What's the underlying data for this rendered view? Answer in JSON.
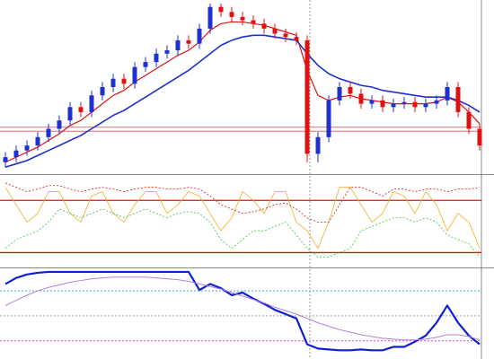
{
  "chart_data": [
    {
      "type": "candlestick",
      "up_color": "#1f2fd0",
      "down_color": "#e01010",
      "ylim": [
        0,
        100
      ],
      "open": [
        5,
        8,
        12,
        15,
        20,
        25,
        30,
        38,
        35,
        45,
        50,
        55,
        52,
        62,
        65,
        70,
        72,
        78,
        76,
        85,
        98,
        95,
        92,
        90,
        88,
        85,
        82,
        80,
        78,
        10,
        20,
        42,
        50,
        46,
        40,
        42,
        38,
        40,
        41,
        38,
        40,
        42,
        50,
        35,
        25
      ],
      "high": [
        11,
        15,
        18,
        23,
        28,
        33,
        41,
        41,
        48,
        53,
        58,
        58,
        65,
        68,
        73,
        75,
        81,
        81,
        88,
        100,
        100,
        98,
        95,
        93,
        91,
        88,
        85,
        83,
        81,
        23,
        45,
        53,
        53,
        49,
        45,
        45,
        43,
        44,
        44,
        43,
        45,
        53,
        53,
        38,
        28
      ],
      "low": [
        2,
        5,
        9,
        12,
        17,
        22,
        27,
        32,
        32,
        42,
        47,
        49,
        49,
        59,
        62,
        67,
        69,
        73,
        73,
        82,
        92,
        89,
        87,
        85,
        82,
        79,
        77,
        75,
        5,
        5,
        17,
        39,
        43,
        37,
        37,
        35,
        35,
        37,
        35,
        35,
        37,
        39,
        32,
        22,
        12
      ],
      "close": [
        8,
        12,
        15,
        20,
        25,
        30,
        38,
        35,
        45,
        50,
        55,
        52,
        62,
        65,
        70,
        72,
        78,
        76,
        85,
        98,
        95,
        92,
        90,
        88,
        85,
        82,
        80,
        78,
        10,
        20,
        42,
        50,
        46,
        40,
        42,
        38,
        40,
        41,
        38,
        40,
        42,
        50,
        35,
        25,
        15
      ],
      "series": [
        {
          "color": "#e01010",
          "width": 1.2,
          "values": [
            5,
            8,
            11,
            14,
            18,
            22,
            27,
            30,
            35,
            40,
            45,
            48,
            53,
            57,
            61,
            65,
            69,
            72,
            77,
            84,
            88,
            89,
            89,
            88,
            87,
            85,
            83,
            81,
            60,
            45,
            42,
            44,
            45,
            43,
            42,
            41,
            40,
            40,
            40,
            40,
            41,
            44,
            41,
            35,
            28
          ]
        },
        {
          "color": "#1f2fd0",
          "width": 1.6,
          "values": [
            2,
            4,
            6,
            9,
            12,
            15,
            18,
            21,
            25,
            29,
            33,
            36,
            40,
            44,
            48,
            52,
            56,
            60,
            65,
            70,
            75,
            78,
            80,
            81,
            81,
            80,
            79,
            78,
            70,
            63,
            58,
            55,
            53,
            51,
            50,
            48,
            47,
            46,
            45,
            44,
            44,
            44,
            42,
            39,
            35
          ]
        }
      ],
      "levels": [
        {
          "value": 26,
          "color": "#e89090"
        },
        {
          "value": 23.5,
          "color": "#e89090"
        }
      ]
    },
    {
      "type": "line",
      "ylim": [
        0,
        100
      ],
      "series": [
        {
          "color": "#f0b020",
          "width": 0.8,
          "values": [
            90,
            70,
            50,
            60,
            85,
            85,
            60,
            50,
            80,
            85,
            60,
            50,
            70,
            85,
            85,
            60,
            70,
            85,
            80,
            60,
            40,
            55,
            85,
            75,
            60,
            85,
            85,
            50,
            40,
            20,
            50,
            90,
            90,
            70,
            50,
            60,
            85,
            80,
            60,
            85,
            70,
            40,
            60,
            50,
            20
          ]
        },
        {
          "color": "#40c040",
          "width": 0.8,
          "dash": true,
          "values": [
            20,
            30,
            35,
            40,
            50,
            65,
            60,
            55,
            60,
            65,
            60,
            55,
            60,
            65,
            60,
            55,
            60,
            62,
            60,
            50,
            30,
            20,
            30,
            40,
            40,
            45,
            50,
            35,
            20,
            10,
            10,
            15,
            20,
            40,
            45,
            50,
            55,
            55,
            50,
            55,
            50,
            35,
            30,
            25,
            10
          ]
        },
        {
          "color": "#e01010",
          "width": 0.8,
          "dash": true,
          "values": [
            95,
            90,
            85,
            88,
            92,
            92,
            88,
            85,
            88,
            90,
            88,
            85,
            88,
            90,
            90,
            88,
            88,
            90,
            88,
            80,
            70,
            65,
            60,
            62,
            65,
            70,
            72,
            65,
            55,
            50,
            50,
            70,
            90,
            90,
            85,
            80,
            88,
            88,
            85,
            88,
            88,
            85,
            88,
            88,
            90
          ]
        }
      ],
      "levels": [
        {
          "value": 75,
          "color": "#e01010"
        },
        {
          "value": 15,
          "color": "#e01010"
        }
      ]
    },
    {
      "type": "line",
      "ylim": [
        0,
        100
      ],
      "series": [
        {
          "color": "#1020d0",
          "width": 2.2,
          "values": [
            85,
            92,
            96,
            98,
            99,
            99,
            99,
            99,
            99,
            99,
            99,
            99,
            99,
            99,
            99,
            99,
            99,
            99,
            78,
            85,
            80,
            72,
            75,
            68,
            62,
            55,
            50,
            45,
            15,
            10,
            9,
            8,
            8,
            9,
            8,
            8,
            12,
            12,
            18,
            25,
            40,
            60,
            40,
            25,
            15
          ]
        },
        {
          "color": "#b080e0",
          "width": 1,
          "values": [
            60,
            66,
            72,
            77,
            81,
            84,
            87,
            89,
            91,
            92,
            93,
            93,
            93,
            93,
            92,
            91,
            90,
            88,
            85,
            82,
            79,
            75,
            71,
            67,
            63,
            58,
            54,
            50,
            45,
            40,
            36,
            32,
            29,
            26,
            24,
            22,
            21,
            20,
            20,
            21,
            23,
            26,
            26,
            24,
            20
          ]
        }
      ],
      "levels": [
        {
          "value": 77,
          "color": "#40b0e0",
          "dash": true
        },
        {
          "value": 48,
          "color": "#a0a0a0",
          "dash": true
        },
        {
          "value": 19,
          "color": "#e040e0",
          "dash": true
        }
      ]
    }
  ]
}
